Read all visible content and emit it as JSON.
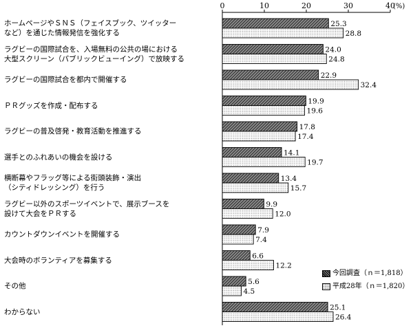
{
  "chart_data": {
    "type": "bar",
    "orientation": "horizontal",
    "xlim": [
      0,
      40
    ],
    "xticks": [
      "0",
      "10",
      "20",
      "30",
      "40"
    ],
    "unit": "(%)",
    "categories": [
      "ホームページやＳＮＳ（フェイスブック、ツイッター\nなど）を通じた情報発信を強化する",
      "ラグビーの国際試合を、入場無料の公共の場における\n大型スクリーン（パブリックビューイング）で放映する",
      "ラグビーの国際試合を都内で開催する",
      "ＰＲグッズを作成・配布する",
      "ラグビーの普及啓発・教育活動を推進する",
      "選手とのふれあいの機会を設ける",
      "横断幕やフラッグ等による街頭装飾・演出\n（シティドレッシング）を行う",
      "ラグビー以外のスポーツイベントで、展示ブースを\n設けて大会をＰＲする",
      "カウントダウンイベントを開催する",
      "大会時のボランティアを募集する",
      "その他",
      "わからない"
    ],
    "series": [
      {
        "name": "今回調査（ｎ＝1,818）",
        "values": [
          25.3,
          24.0,
          22.9,
          19.9,
          17.8,
          14.1,
          13.4,
          9.9,
          7.9,
          6.6,
          5.6,
          25.1
        ]
      },
      {
        "name": "平成28年（ｎ＝1,820）",
        "values": [
          28.8,
          24.8,
          32.4,
          19.6,
          17.4,
          19.7,
          15.7,
          12.0,
          7.4,
          12.2,
          4.5,
          26.4
        ]
      }
    ],
    "grid": false,
    "legend_position": "bottom-right"
  }
}
